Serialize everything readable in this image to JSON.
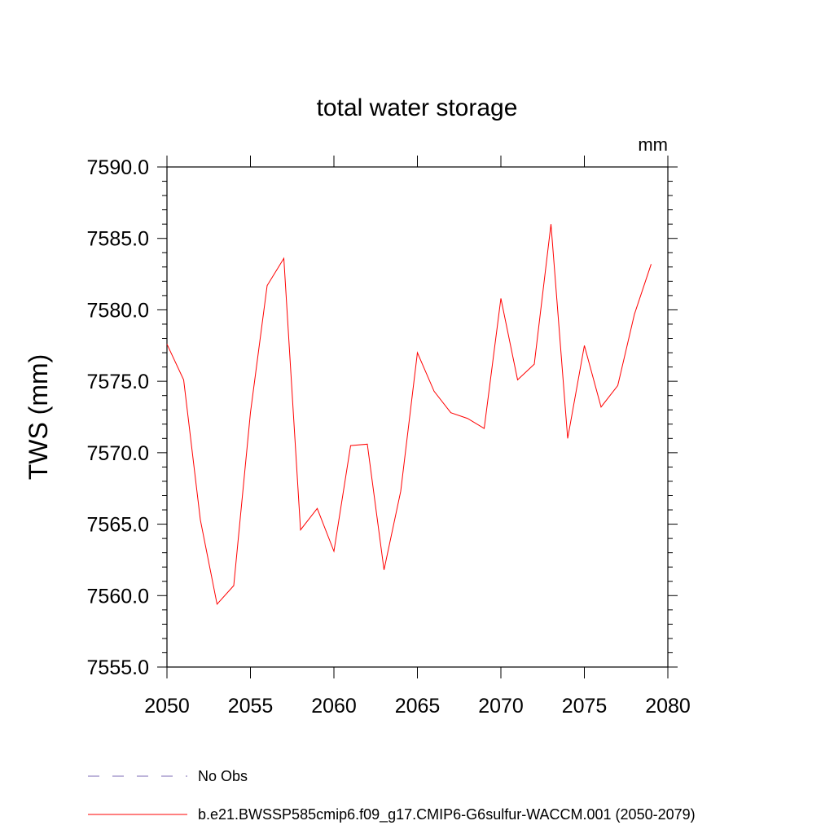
{
  "chart_data": {
    "type": "line",
    "title": "total water storage",
    "units_label": "mm",
    "ylabel": "TWS  (mm)",
    "xlabel": "",
    "xlim": [
      2050,
      2080
    ],
    "ylim": [
      7555.0,
      7590.0
    ],
    "x_ticks": [
      2050,
      2055,
      2060,
      2065,
      2070,
      2075,
      2080
    ],
    "y_ticks": [
      7555.0,
      7560.0,
      7565.0,
      7570.0,
      7575.0,
      7580.0,
      7585.0,
      7590.0
    ],
    "x_tick_labels": [
      "2050",
      "2055",
      "2060",
      "2065",
      "2070",
      "2075",
      "2080"
    ],
    "y_tick_labels": [
      "7555.0",
      "7560.0",
      "7565.0",
      "7570.0",
      "7575.0",
      "7580.0",
      "7585.0",
      "7590.0"
    ],
    "grid": false,
    "legend_position": "bottom",
    "series": [
      {
        "name": "b.e21.BWSSP585cmip6.f09_g17.CMIP6-G6sulfur-WACCM.001 (2050-2079)",
        "color": "#ff0000",
        "style": "solid",
        "x": [
          2050,
          2051,
          2052,
          2053,
          2054,
          2055,
          2056,
          2057,
          2058,
          2059,
          2060,
          2061,
          2062,
          2063,
          2064,
          2065,
          2066,
          2067,
          2068,
          2069,
          2070,
          2071,
          2072,
          2073,
          2074,
          2075,
          2076,
          2077,
          2078,
          2079
        ],
        "values": [
          7577.6,
          7575.1,
          7565.3,
          7559.4,
          7560.7,
          7572.8,
          7581.7,
          7583.6,
          7564.6,
          7566.1,
          7563.1,
          7570.5,
          7570.6,
          7561.8,
          7567.3,
          7577.0,
          7574.3,
          7572.8,
          7572.4,
          7571.7,
          7580.8,
          7575.1,
          7576.2,
          7586.0,
          7571.0,
          7577.5,
          7573.2,
          7574.7,
          7579.7,
          7583.2
        ]
      }
    ],
    "legend": [
      {
        "label": "No Obs",
        "color": "#7b68b5",
        "style": "dashed"
      },
      {
        "label": "b.e21.BWSSP585cmip6.f09_g17.CMIP6-G6sulfur-WACCM.001 (2050-2079)",
        "color": "#ff0000",
        "style": "solid"
      }
    ]
  }
}
